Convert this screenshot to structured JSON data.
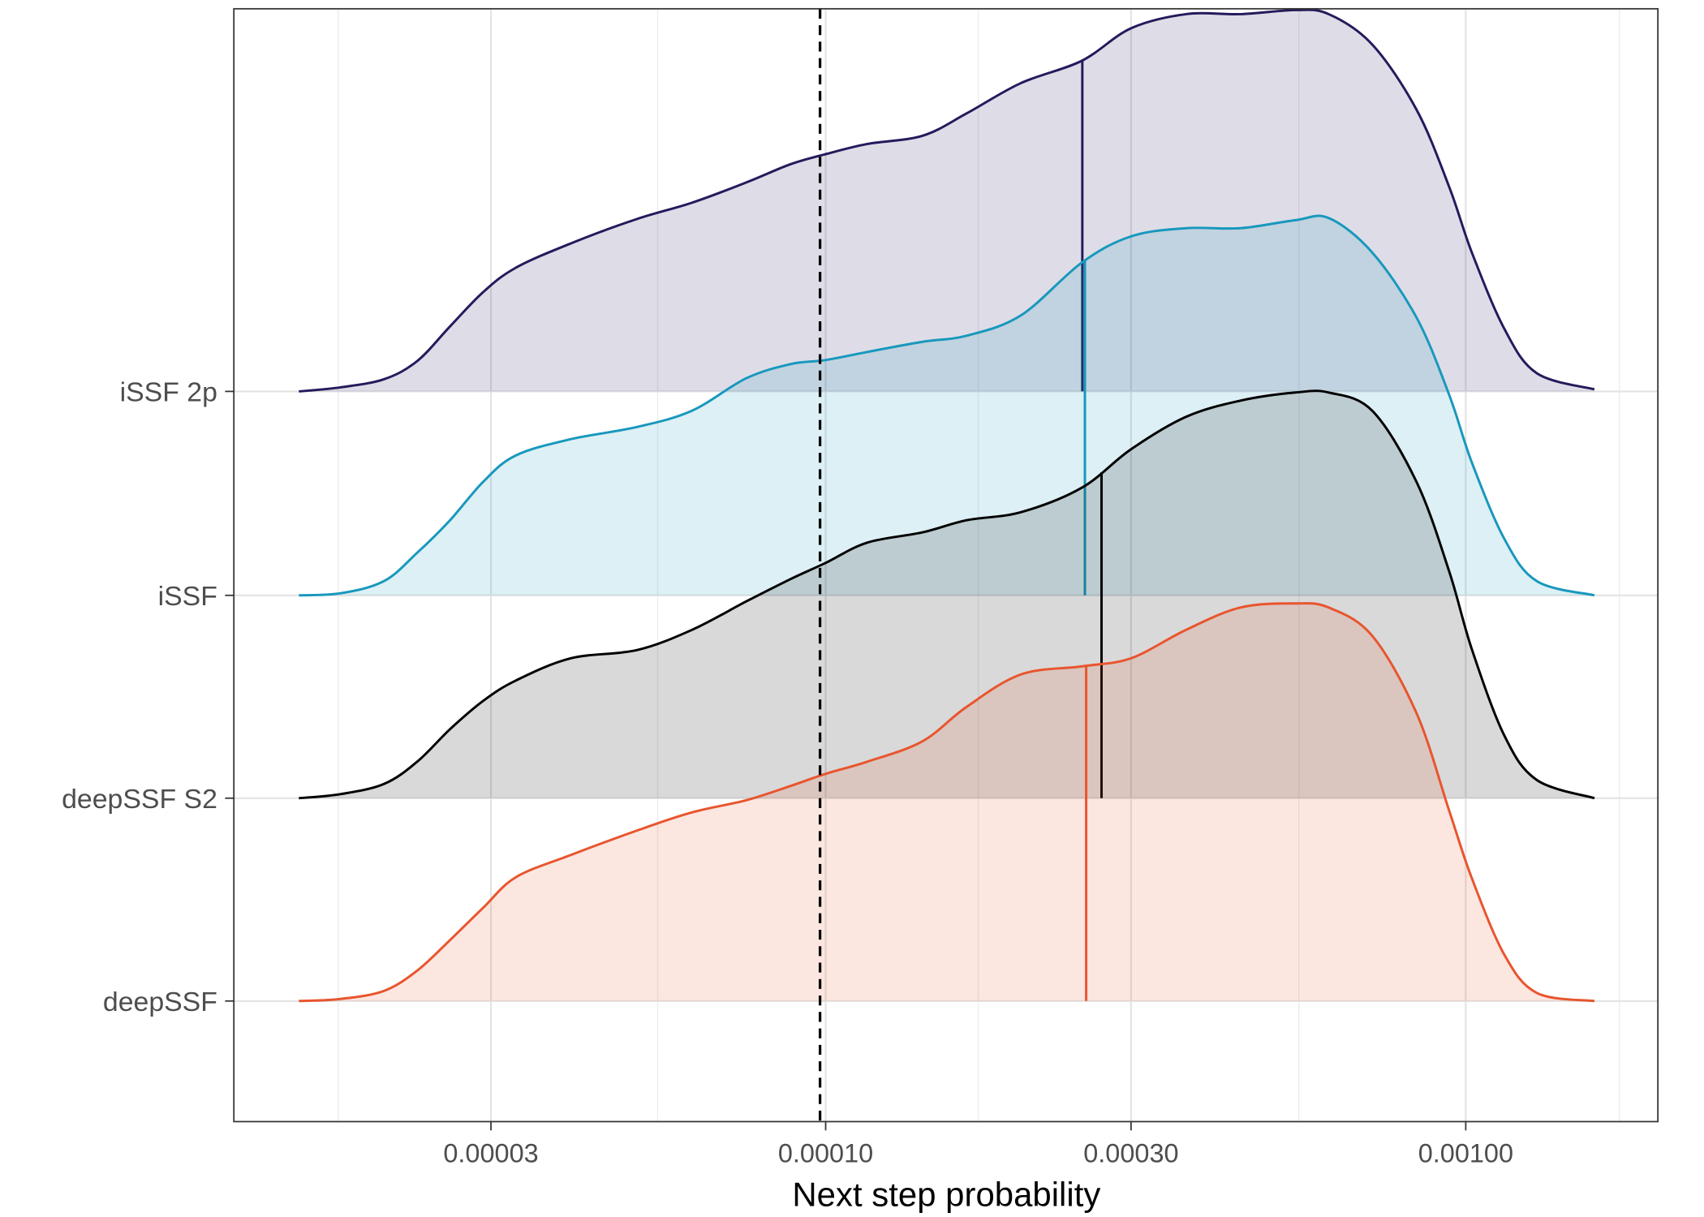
{
  "chart_data": {
    "type": "area",
    "subtype": "ridgeline-density",
    "title": "",
    "xlabel": "Next step probability",
    "ylabel": "",
    "x_scale": "log10",
    "x_ticks": [
      {
        "value": 3e-05,
        "label": "0.00003"
      },
      {
        "value": 0.0001,
        "label": "0.00010"
      },
      {
        "value": 0.0003,
        "label": "0.00030"
      },
      {
        "value": 0.001,
        "label": "0.00100"
      }
    ],
    "xlim_log10": [
      -5.0,
      -2.69
    ],
    "reference_line": {
      "value": 9.8e-05,
      "style": "dashed",
      "color": "#000000"
    },
    "grid": true,
    "x_log10_grid": [
      -4.823,
      -4.758,
      -4.69,
      -4.638,
      -4.587,
      -4.535,
      -4.484,
      -4.398,
      -4.295,
      -4.209,
      -4.124,
      -4.055,
      -4.0,
      -3.935,
      -3.849,
      -3.78,
      -3.695,
      -3.6,
      -3.523,
      -3.437,
      -3.352,
      -3.266,
      -3.214,
      -3.146,
      -3.077,
      -3.026,
      -2.991,
      -2.94,
      -2.889,
      -2.799
    ],
    "series": [
      {
        "name": "iSSF 2p",
        "color": "#231b5c",
        "median_log10": -3.599,
        "density": [
          0,
          0.02,
          0.06,
          0.15,
          0.32,
          0.49,
          0.61,
          0.73,
          0.85,
          0.93,
          1.03,
          1.12,
          1.17,
          1.22,
          1.26,
          1.37,
          1.52,
          1.63,
          1.79,
          1.86,
          1.86,
          1.88,
          1.86,
          1.71,
          1.39,
          1.01,
          0.69,
          0.31,
          0.09,
          0.01
        ]
      },
      {
        "name": "iSSF",
        "color": "#1898bd",
        "median_log10": -3.595,
        "density": [
          0,
          0.01,
          0.07,
          0.21,
          0.37,
          0.56,
          0.69,
          0.77,
          0.83,
          0.91,
          1.07,
          1.14,
          1.16,
          1.2,
          1.25,
          1.28,
          1.38,
          1.64,
          1.77,
          1.81,
          1.81,
          1.85,
          1.86,
          1.69,
          1.37,
          0.99,
          0.66,
          0.28,
          0.07,
          0
        ]
      },
      {
        "name": "deepSSF S2",
        "color": "#000000",
        "median_log10": -3.569,
        "density": [
          0,
          0.02,
          0.07,
          0.18,
          0.34,
          0.48,
          0.58,
          0.69,
          0.73,
          0.83,
          0.97,
          1.08,
          1.16,
          1.26,
          1.31,
          1.37,
          1.41,
          1.53,
          1.72,
          1.88,
          1.96,
          2.0,
          2.0,
          1.91,
          1.56,
          1.12,
          0.74,
          0.31,
          0.09,
          0
        ]
      },
      {
        "name": "deepSSF",
        "color": "#e8552e",
        "median_log10": -3.593,
        "density": [
          0,
          0.01,
          0.05,
          0.15,
          0.3,
          0.46,
          0.61,
          0.72,
          0.84,
          0.93,
          0.99,
          1.06,
          1.12,
          1.18,
          1.28,
          1.45,
          1.61,
          1.65,
          1.69,
          1.83,
          1.94,
          1.96,
          1.94,
          1.8,
          1.42,
          0.94,
          0.61,
          0.23,
          0.04,
          0
        ]
      }
    ]
  }
}
